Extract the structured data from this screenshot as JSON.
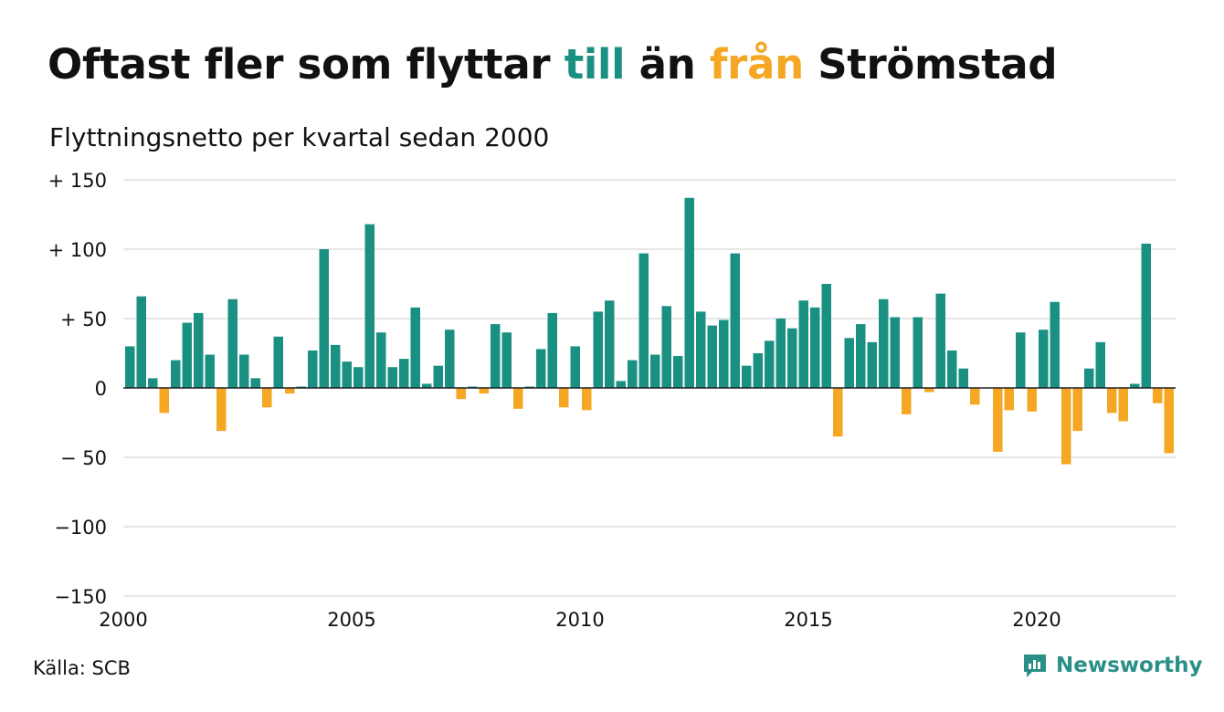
{
  "title": {
    "part1": "Oftast fler som flyttar ",
    "till": "till",
    "part2": " än ",
    "fran": "från",
    "part3": " Strömstad"
  },
  "subtitle": "Flyttningsnetto per kvartal sedan 2000",
  "source": "Källa: SCB",
  "brand": {
    "name": "Newsworthy",
    "logo_icon": "chart-bubble-icon"
  },
  "colors": {
    "positive": "#1a9082",
    "negative": "#f5a623",
    "grid": "#dddddd",
    "zero": "#222222"
  },
  "chart_data": {
    "type": "bar",
    "title": "Oftast fler som flyttar till än från Strömstad",
    "subtitle": "Flyttningsnetto per kvartal sedan 2000",
    "x_start": "2000 Q1",
    "x_ticks": [
      "2000",
      "2005",
      "2010",
      "2015",
      "2020"
    ],
    "y_ticks": [
      "+ 150",
      "+ 100",
      "+  50",
      "0",
      "− 50",
      "−100",
      "−150"
    ],
    "ylim": [
      -150,
      150
    ],
    "grid": true,
    "values": [
      30,
      66,
      7,
      -18,
      20,
      47,
      54,
      24,
      -31,
      64,
      24,
      7,
      -14,
      37,
      -4,
      1,
      27,
      100,
      31,
      19,
      15,
      118,
      40,
      15,
      21,
      58,
      3,
      16,
      42,
      -8,
      1,
      -4,
      46,
      40,
      -15,
      1,
      28,
      54,
      -14,
      30,
      -16,
      55,
      63,
      5,
      20,
      97,
      24,
      59,
      23,
      137,
      55,
      45,
      49,
      97,
      16,
      25,
      34,
      50,
      43,
      63,
      58,
      75,
      -35,
      36,
      46,
      33,
      64,
      51,
      -19,
      51,
      -3,
      68,
      27,
      14,
      -12,
      0,
      -46,
      -16,
      40,
      -17,
      42,
      62,
      -55,
      -31,
      14,
      33,
      -18,
      -24,
      3,
      104,
      -11,
      -47
    ]
  }
}
